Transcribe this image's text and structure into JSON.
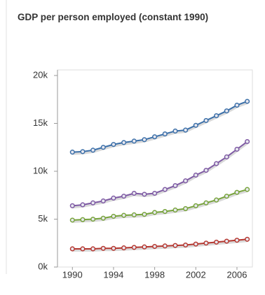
{
  "chart_data": {
    "type": "line",
    "title": "GDP per person employed (constant 1990)",
    "x": [
      1990,
      1991,
      1992,
      1993,
      1994,
      1995,
      1996,
      1997,
      1998,
      1999,
      2000,
      2001,
      2002,
      2003,
      2004,
      2005,
      2006,
      2007
    ],
    "series": [
      {
        "color": "#3b6fa8",
        "values": [
          12000,
          12050,
          12200,
          12500,
          12800,
          13000,
          13150,
          13300,
          13600,
          13900,
          14200,
          14300,
          14800,
          15300,
          15800,
          16300,
          16900,
          17300
        ]
      },
      {
        "color": "#7e5aa3",
        "values": [
          6400,
          6500,
          6700,
          6900,
          7200,
          7400,
          7700,
          7600,
          7700,
          8100,
          8500,
          9000,
          9600,
          10100,
          10800,
          11500,
          12300,
          13100
        ]
      },
      {
        "color": "#77a33b",
        "values": [
          4900,
          4950,
          5000,
          5100,
          5300,
          5400,
          5450,
          5500,
          5700,
          5800,
          5950,
          6100,
          6400,
          6700,
          7000,
          7400,
          7800,
          8100
        ]
      },
      {
        "color": "#b5372f",
        "values": [
          1900,
          1900,
          1900,
          1950,
          1950,
          2000,
          2050,
          2100,
          2150,
          2200,
          2250,
          2300,
          2400,
          2500,
          2600,
          2700,
          2800,
          2900
        ]
      }
    ],
    "xlim": [
      1988.55,
      2007.5
    ],
    "xticks": [
      1990,
      1994,
      1998,
      2002,
      2006,
      2010
    ],
    "ylim": [
      0,
      20000
    ],
    "yticks": [
      {
        "value": 0,
        "label": "0k"
      },
      {
        "value": 5000,
        "label": "5k"
      },
      {
        "value": 10000,
        "label": "10k"
      },
      {
        "value": 15000,
        "label": "15k"
      },
      {
        "value": 20000,
        "label": "20k"
      }
    ]
  }
}
